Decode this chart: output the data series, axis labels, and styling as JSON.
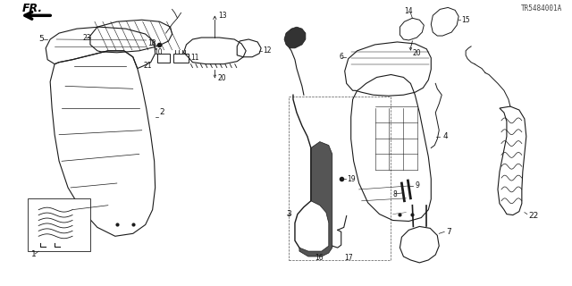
{
  "part_number": "TR5484001A",
  "background_color": "#ffffff",
  "line_color": "#1a1a1a",
  "text_color": "#111111",
  "figsize": [
    6.4,
    3.2
  ],
  "dpi": 100
}
